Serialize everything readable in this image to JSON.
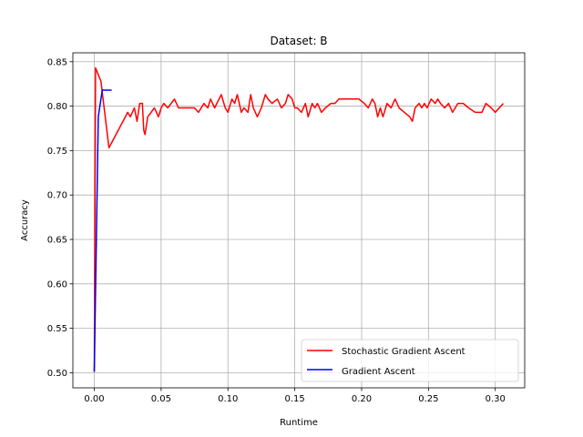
{
  "chart_data": {
    "type": "line",
    "title": "Dataset: B",
    "xlabel": "Runtime",
    "ylabel": "Accuracy",
    "xlim": [
      -0.016,
      0.322
    ],
    "ylim": [
      0.483,
      0.86
    ],
    "xticks": [
      0.0,
      0.05,
      0.1,
      0.15,
      0.2,
      0.25,
      0.3
    ],
    "xtick_labels": [
      "0.00",
      "0.05",
      "0.10",
      "0.15",
      "0.20",
      "0.25",
      "0.30"
    ],
    "yticks": [
      0.5,
      0.55,
      0.6,
      0.65,
      0.7,
      0.75,
      0.8,
      0.85
    ],
    "ytick_labels": [
      "0.50",
      "0.55",
      "0.60",
      "0.65",
      "0.70",
      "0.75",
      "0.80",
      "0.85"
    ],
    "grid": true,
    "legend_position": "lower-right",
    "series": [
      {
        "name": "Stochastic Gradient Ascent",
        "color": "#ff0000",
        "x": [
          0.0,
          0.001,
          0.005,
          0.011,
          0.025,
          0.027,
          0.03,
          0.032,
          0.034,
          0.036,
          0.037,
          0.038,
          0.04,
          0.045,
          0.048,
          0.05,
          0.052,
          0.055,
          0.06,
          0.063,
          0.067,
          0.07,
          0.073,
          0.075,
          0.078,
          0.08,
          0.082,
          0.085,
          0.087,
          0.09,
          0.095,
          0.098,
          0.1,
          0.103,
          0.105,
          0.107,
          0.11,
          0.112,
          0.115,
          0.117,
          0.119,
          0.122,
          0.125,
          0.128,
          0.13,
          0.133,
          0.137,
          0.14,
          0.143,
          0.145,
          0.148,
          0.15,
          0.152,
          0.155,
          0.158,
          0.16,
          0.163,
          0.165,
          0.167,
          0.17,
          0.173,
          0.177,
          0.18,
          0.183,
          0.186,
          0.19,
          0.194,
          0.198,
          0.202,
          0.205,
          0.208,
          0.21,
          0.212,
          0.214,
          0.216,
          0.219,
          0.222,
          0.225,
          0.228,
          0.232,
          0.236,
          0.238,
          0.24,
          0.243,
          0.245,
          0.247,
          0.249,
          0.252,
          0.255,
          0.257,
          0.259,
          0.262,
          0.265,
          0.268,
          0.272,
          0.276,
          0.28,
          0.285,
          0.29,
          0.293,
          0.297,
          0.3,
          0.303,
          0.306
        ],
        "values": [
          0.501,
          0.843,
          0.828,
          0.753,
          0.793,
          0.788,
          0.798,
          0.783,
          0.803,
          0.803,
          0.773,
          0.768,
          0.788,
          0.798,
          0.788,
          0.798,
          0.803,
          0.798,
          0.808,
          0.798,
          0.798,
          0.798,
          0.798,
          0.798,
          0.793,
          0.798,
          0.803,
          0.798,
          0.808,
          0.798,
          0.813,
          0.798,
          0.793,
          0.808,
          0.803,
          0.813,
          0.793,
          0.798,
          0.793,
          0.813,
          0.798,
          0.788,
          0.798,
          0.813,
          0.808,
          0.803,
          0.808,
          0.798,
          0.803,
          0.813,
          0.808,
          0.798,
          0.798,
          0.793,
          0.803,
          0.788,
          0.803,
          0.798,
          0.803,
          0.793,
          0.798,
          0.803,
          0.803,
          0.808,
          0.808,
          0.808,
          0.808,
          0.808,
          0.803,
          0.798,
          0.808,
          0.803,
          0.788,
          0.798,
          0.788,
          0.803,
          0.798,
          0.808,
          0.798,
          0.793,
          0.788,
          0.783,
          0.798,
          0.803,
          0.798,
          0.803,
          0.798,
          0.808,
          0.803,
          0.808,
          0.803,
          0.798,
          0.803,
          0.793,
          0.803,
          0.803,
          0.798,
          0.793,
          0.793,
          0.803,
          0.798,
          0.793,
          0.798,
          0.803
        ]
      },
      {
        "name": "Gradient Ascent",
        "color": "#0000ff",
        "x": [
          0.0,
          0.003,
          0.006,
          0.008,
          0.013
        ],
        "values": [
          0.501,
          0.788,
          0.818,
          0.818,
          0.818
        ]
      }
    ]
  }
}
